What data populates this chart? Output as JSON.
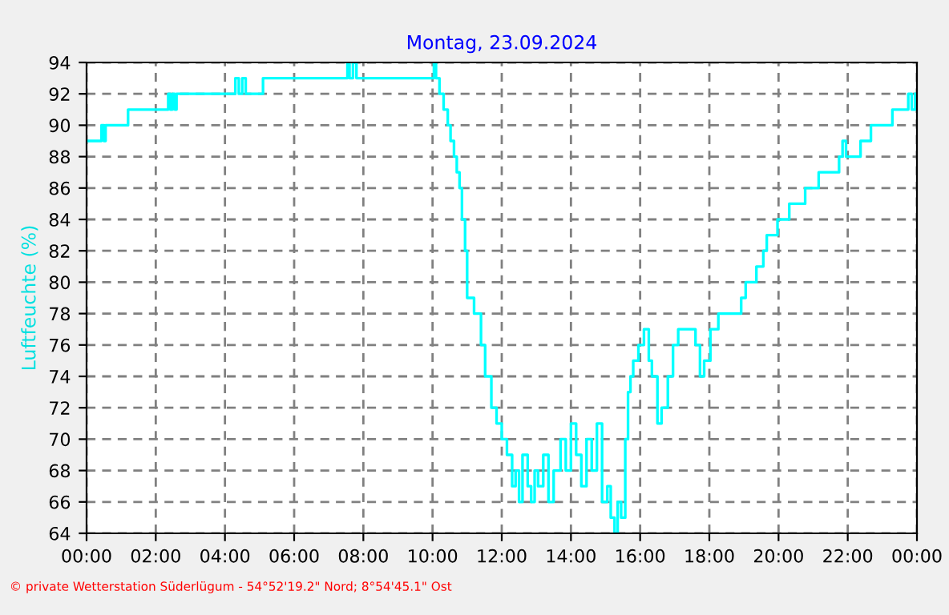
{
  "chart_data": {
    "type": "step",
    "title": "Montag, 23.09.2024",
    "ylabel": "Luftfeuchte (%)",
    "x": [
      0,
      0.43,
      0.5,
      0.55,
      1.2,
      2.36,
      2.42,
      2.48,
      2.55,
      2.6,
      4.3,
      4.4,
      4.5,
      4.6,
      5.1,
      5.15,
      7.54,
      7.6,
      7.7,
      7.8,
      10.04,
      10.1,
      10.2,
      10.32,
      10.44,
      10.52,
      10.62,
      10.7,
      10.78,
      10.85,
      10.94,
      11.0,
      11.2,
      11.4,
      11.52,
      11.7,
      11.85,
      12.0,
      12.15,
      12.3,
      12.4,
      12.5,
      12.6,
      12.75,
      12.85,
      12.95,
      13.05,
      13.2,
      13.35,
      13.5,
      13.7,
      13.85,
      14.0,
      14.15,
      14.3,
      14.45,
      14.6,
      14.75,
      14.9,
      15.05,
      15.15,
      15.26,
      15.35,
      15.45,
      15.57,
      15.65,
      15.72,
      15.8,
      15.95,
      16.11,
      16.25,
      16.34,
      16.5,
      16.62,
      16.8,
      16.95,
      17.1,
      17.5,
      17.6,
      17.73,
      17.85,
      18.03,
      18.26,
      18.92,
      19.05,
      19.36,
      19.56,
      19.66,
      19.97,
      20.31,
      20.77,
      21.16,
      21.75,
      21.85,
      21.95,
      22.05,
      22.37,
      22.67,
      23.29,
      23.75,
      23.85,
      23.95
    ],
    "values": [
      89,
      90,
      89,
      90,
      91,
      92,
      91,
      92,
      91,
      92,
      93,
      92,
      93,
      92,
      93,
      93,
      94,
      93,
      94,
      93,
      94,
      93,
      92,
      91,
      90,
      89,
      88,
      87,
      86,
      84,
      82,
      79,
      78,
      76,
      74,
      72,
      71,
      70,
      69,
      67,
      68,
      66,
      69,
      67,
      66,
      68,
      67,
      69,
      66,
      68,
      70,
      68,
      71,
      69,
      67,
      70,
      68,
      71,
      66,
      67,
      65,
      64,
      66,
      65,
      70,
      73,
      74,
      75,
      76,
      77,
      75,
      74,
      71,
      72,
      74,
      76,
      77,
      77,
      76,
      74,
      75,
      77,
      78,
      79,
      80,
      81,
      82,
      83,
      84,
      85,
      86,
      87,
      88,
      89,
      88,
      88,
      89,
      90,
      91,
      92,
      91,
      92
    ],
    "color": "#00ffff",
    "xlim": [
      0,
      24
    ],
    "ylim": [
      64,
      94
    ],
    "xticks": [
      {
        "value": 0,
        "label": "00:00"
      },
      {
        "value": 2,
        "label": "02:00"
      },
      {
        "value": 4,
        "label": "04:00"
      },
      {
        "value": 6,
        "label": "06:00"
      },
      {
        "value": 8,
        "label": "08:00"
      },
      {
        "value": 10,
        "label": "10:00"
      },
      {
        "value": 12,
        "label": "12:00"
      },
      {
        "value": 14,
        "label": "14:00"
      },
      {
        "value": 16,
        "label": "16:00"
      },
      {
        "value": 18,
        "label": "18:00"
      },
      {
        "value": 20,
        "label": "20:00"
      },
      {
        "value": 22,
        "label": "22:00"
      },
      {
        "value": 24,
        "label": "00:00"
      }
    ],
    "yticks": [
      64,
      66,
      68,
      70,
      72,
      74,
      76,
      78,
      80,
      82,
      84,
      86,
      88,
      90,
      92,
      94
    ],
    "grid": true,
    "legend": false,
    "annotations": [
      "© private Wetterstation Süderlügum - 54°52'19.2\" Nord; 8°54'45.1\" Ost"
    ]
  }
}
